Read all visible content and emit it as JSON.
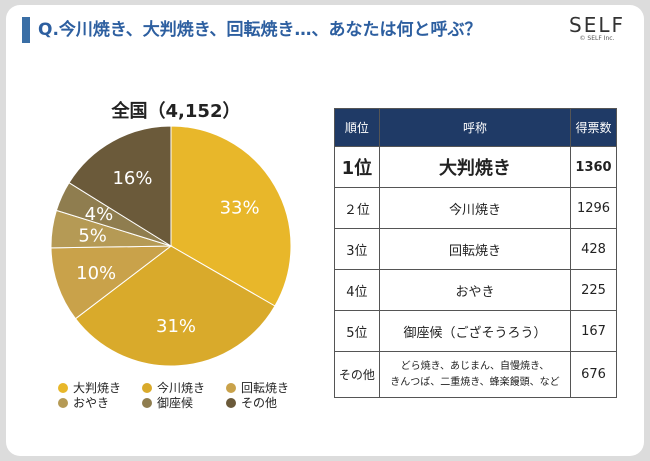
{
  "header": {
    "title": "Q.今川焼き、大判焼き、回転焼き…、あなたは何と呼ぶ？",
    "logo": "SELF",
    "logo_sub": "© SELF Inc."
  },
  "chart_data": {
    "type": "pie",
    "title": "全国（4,152）",
    "categories": [
      "大判焼き",
      "今川焼き",
      "回転焼き",
      "おやき",
      "御座候",
      "その他"
    ],
    "values": [
      33,
      31,
      10,
      5,
      4,
      16
    ],
    "labels": [
      "33%",
      "31%",
      "10%",
      "5%",
      "4%",
      "16%"
    ],
    "colors": [
      "#e8b72a",
      "#d9aa2b",
      "#c9a24a",
      "#b59a55",
      "#8f7d4f",
      "#6b5a3a"
    ],
    "legend_position": "bottom"
  },
  "table": {
    "headers": [
      "順位",
      "呼称",
      "得票数"
    ],
    "rows": [
      {
        "rank": "1位",
        "name": "大判焼き",
        "votes": "1360"
      },
      {
        "rank": "２位",
        "name": "今川焼き",
        "votes": "1296"
      },
      {
        "rank": "3位",
        "name": "回転焼き",
        "votes": "428"
      },
      {
        "rank": "4位",
        "name": "おやき",
        "votes": "225"
      },
      {
        "rank": "5位",
        "name": "御座候（ござそうろう）",
        "votes": "167"
      }
    ],
    "other": {
      "rank": "その他",
      "name_line1": "どら焼き、あじまん、自慢焼き、",
      "name_line2": "きんつば、二重焼き、蜂楽饅頭、など",
      "votes": "676"
    }
  }
}
